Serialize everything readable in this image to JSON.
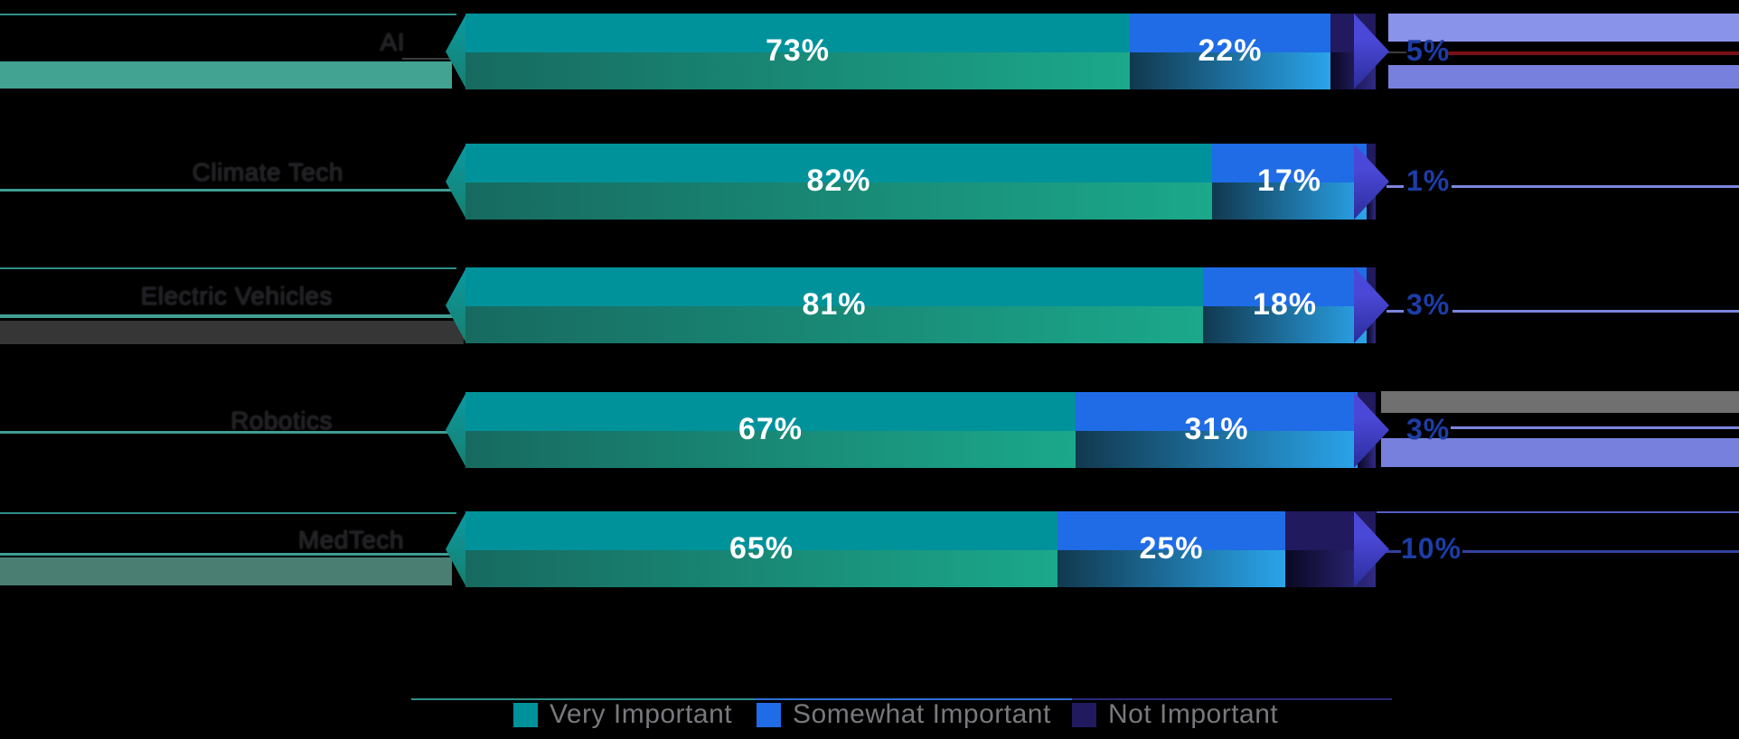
{
  "chart_data": {
    "type": "bar",
    "variant": "horizontal-stacked-3d",
    "categories": [
      "AI",
      "Climate Tech",
      "Electric Vehicles",
      "Robotics",
      "MedTech"
    ],
    "series": [
      {
        "name": "Very Important",
        "values": [
          73,
          82,
          81,
          67,
          65
        ]
      },
      {
        "name": "Somewhat Important",
        "values": [
          22,
          17,
          18,
          31,
          25
        ]
      },
      {
        "name": "Not Important",
        "values": [
          5,
          1,
          3,
          3,
          10
        ]
      }
    ],
    "bar_labels": [
      [
        "73%",
        "22%",
        ""
      ],
      [
        "82%",
        "17%",
        ""
      ],
      [
        "81%",
        "18%",
        ""
      ],
      [
        "67%",
        "31%",
        ""
      ],
      [
        "65%",
        "25%",
        ""
      ]
    ],
    "right_value_labels": [
      "5%",
      "1%",
      "3%",
      "3%",
      "10%"
    ],
    "xlim": [
      0,
      100
    ],
    "legend_position": "bottom",
    "legend": [
      "Very Important",
      "Somewhat Important",
      "Not Important"
    ]
  },
  "colors": {
    "background": "#000000",
    "very_top": "#00929b",
    "very_front_from": "#176a60",
    "very_front_to": "#1ba88b",
    "very_cap_from": "#0b9aa2",
    "very_cap_to": "#177f6e",
    "somewhat_top": "#1f6ce6",
    "somewhat_front_from": "#11394f",
    "somewhat_front_to": "#2aa4ea",
    "not_top": "#211a5e",
    "not_front_from": "#0a0822",
    "not_front_to": "#302a84",
    "not_cap_from": "#4a48d6",
    "not_cap_to": "#2b2d9c",
    "bar_label": "#ffffff",
    "category_label": "#1f1f24",
    "value_label": "#1d3da6",
    "legend_text": "#77797d",
    "teal_line": "#2e8f8a",
    "teal_underline": "#3f9d92",
    "teal_band": "#42a392",
    "sage_band": "#4a7e72",
    "grey_band_dark": "#363636",
    "grey_band_light": "#707070",
    "peri_band_light": "#8a93ea",
    "peri_band": "#7780dd",
    "peri_line": "#7b86e0",
    "navy_line": "#33419f",
    "indigo_line": "#5560c4",
    "red_line": "#7a1016",
    "grey_line": "#3b3b40",
    "legend_rule_teal": "#2e8f8a",
    "legend_rule_blue": "#2f6fd8",
    "legend_rule_navy": "#2a2a7a"
  }
}
